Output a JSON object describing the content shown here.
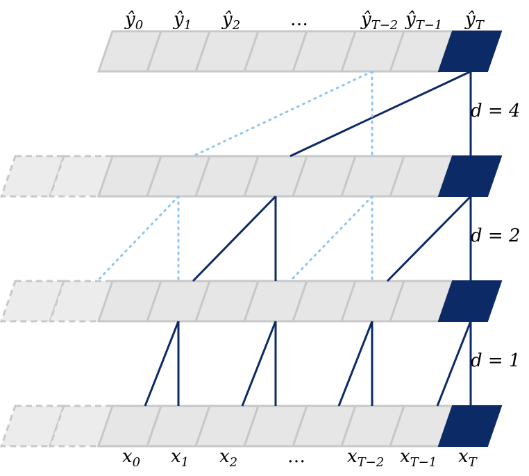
{
  "diagram": {
    "output_labels": {
      "y0": "ŷ",
      "y0_sub": "0",
      "y1": "ŷ",
      "y1_sub": "1",
      "y2": "ŷ",
      "y2_sub": "2",
      "ellipsis": "…",
      "yT2": "ŷ",
      "yT2_sub": "T−2",
      "yT1": "ŷ",
      "yT1_sub": "T−1",
      "yT": "ŷ",
      "yT_sub": "T"
    },
    "input_labels": {
      "x0": "x",
      "x0_sub": "0",
      "x1": "x",
      "x1_sub": "1",
      "x2": "x",
      "x2_sub": "2",
      "ellipsis": "…",
      "xT2": "x",
      "xT2_sub": "T−2",
      "xT1": "x",
      "xT1_sub": "T−1",
      "xT": "x",
      "xT_sub": "T"
    },
    "dilations": {
      "d4": "d = 4",
      "d2": "d = 2",
      "d1": "d = 1"
    },
    "colors": {
      "active_cell": "#0c2a66",
      "cell": "#e6e6e6",
      "dotted_connection": "#8ec5f4"
    }
  }
}
